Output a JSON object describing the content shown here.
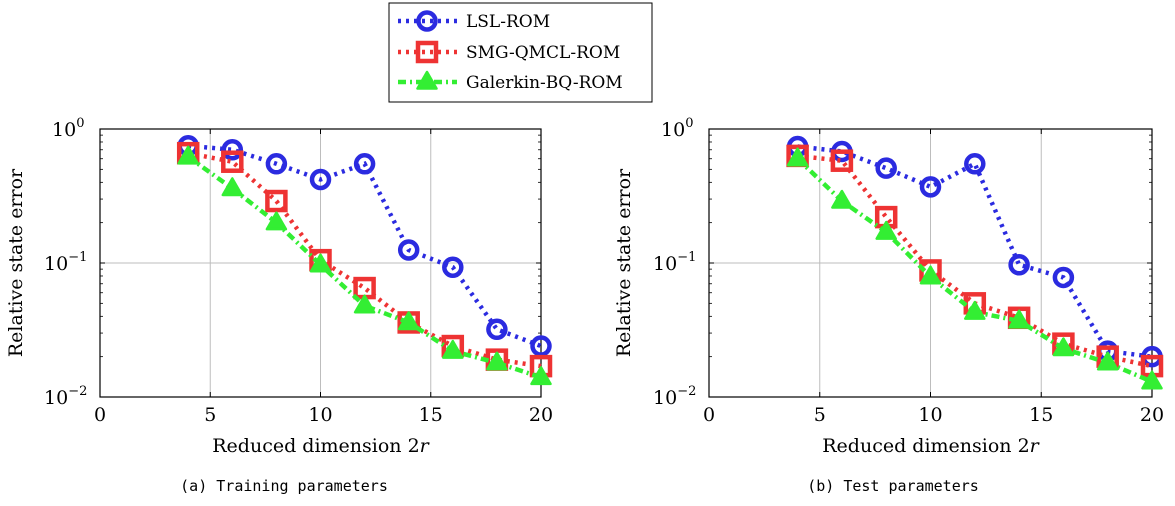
{
  "legend": {
    "entries": [
      {
        "label": "LSL-ROM",
        "color": "#2b2be0",
        "marker": "circle"
      },
      {
        "label": "SMG-QMCL-ROM",
        "color": "#ee3333",
        "marker": "square"
      },
      {
        "label": "Galerkin-BQ-ROM",
        "color": "#33ee33",
        "marker": "triangle"
      }
    ]
  },
  "chart_data": [
    {
      "type": "line",
      "caption": "(a) Training parameters",
      "xlabel_text": "Reduced dimension 2",
      "xlabel_var": "r",
      "ylabel": "Relative state error",
      "xlim": [
        0,
        20
      ],
      "ylim": [
        0.01,
        1
      ],
      "yscale": "log",
      "grid": true,
      "xticks": [
        0,
        5,
        10,
        15,
        20
      ],
      "yticks": [
        {
          "base": "10",
          "exp": "0",
          "value": 1
        },
        {
          "base": "10",
          "exp": "−1",
          "value": 0.1
        },
        {
          "base": "10",
          "exp": "−2",
          "value": 0.01
        }
      ],
      "x": [
        4,
        6,
        8,
        10,
        12,
        14,
        16,
        18,
        20
      ],
      "series": [
        {
          "name": "LSL-ROM",
          "values": [
            0.75,
            0.7,
            0.55,
            0.42,
            0.55,
            0.125,
            0.093,
            0.032,
            0.024
          ]
        },
        {
          "name": "SMG-QMCL-ROM",
          "values": [
            0.66,
            0.57,
            0.29,
            0.105,
            0.065,
            0.036,
            0.024,
            0.019,
            0.017
          ]
        },
        {
          "name": "Galerkin-BQ-ROM",
          "values": [
            0.62,
            0.36,
            0.2,
            0.097,
            0.048,
            0.036,
            0.022,
            0.018,
            0.014
          ]
        }
      ]
    },
    {
      "type": "line",
      "caption": "(b) Test parameters",
      "xlabel_text": "Reduced dimension 2",
      "xlabel_var": "r",
      "ylabel": "Relative state error",
      "xlim": [
        0,
        20
      ],
      "ylim": [
        0.01,
        1
      ],
      "yscale": "log",
      "grid": true,
      "xticks": [
        0,
        5,
        10,
        15,
        20
      ],
      "yticks": [
        {
          "base": "10",
          "exp": "0",
          "value": 1
        },
        {
          "base": "10",
          "exp": "−1",
          "value": 0.1
        },
        {
          "base": "10",
          "exp": "−2",
          "value": 0.01
        }
      ],
      "x": [
        4,
        6,
        8,
        10,
        12,
        14,
        16,
        18,
        20
      ],
      "series": [
        {
          "name": "LSL-ROM",
          "values": [
            0.74,
            0.68,
            0.51,
            0.37,
            0.55,
            0.097,
            0.078,
            0.022,
            0.02
          ]
        },
        {
          "name": "SMG-QMCL-ROM",
          "values": [
            0.63,
            0.58,
            0.22,
            0.088,
            0.05,
            0.039,
            0.025,
            0.02,
            0.017
          ]
        },
        {
          "name": "Galerkin-BQ-ROM",
          "values": [
            0.6,
            0.29,
            0.17,
            0.079,
            0.043,
            0.037,
            0.023,
            0.018,
            0.013
          ]
        }
      ]
    }
  ]
}
